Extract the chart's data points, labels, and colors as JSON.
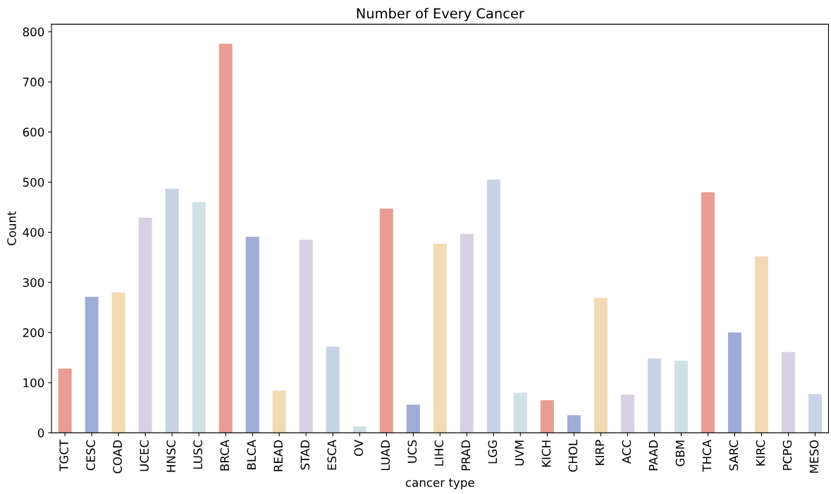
{
  "chart_data": {
    "type": "bar",
    "title": "Number of Every Cancer",
    "xlabel": "cancer type",
    "ylabel": "Count",
    "categories": [
      "TGCT",
      "CESC",
      "COAD",
      "UCEC",
      "HNSC",
      "LUSC",
      "BRCA",
      "BLCA",
      "READ",
      "STAD",
      "ESCA",
      "OV",
      "LUAD",
      "UCS",
      "LIHC",
      "PRAD",
      "LGG",
      "UVM",
      "KICH",
      "CHOL",
      "KIRP",
      "ACC",
      "PAAD",
      "GBM",
      "THCA",
      "SARC",
      "KIRC",
      "PCPG",
      "MESO"
    ],
    "values": [
      128,
      271,
      280,
      429,
      487,
      460,
      776,
      391,
      84,
      385,
      172,
      13,
      447,
      56,
      377,
      397,
      505,
      80,
      65,
      35,
      269,
      76,
      148,
      144,
      480,
      200,
      352,
      161,
      77
    ],
    "colors": [
      "#e99d93",
      "#9facd5",
      "#f2dab4",
      "#d9d0e3",
      "#c8d4e6",
      "#d0e1e6",
      "#e99d93",
      "#9facd5",
      "#f2dab4",
      "#d9d0e3",
      "#c8d4e6",
      "#d0e1e6",
      "#e99d93",
      "#9facd5",
      "#f2dab4",
      "#d9d0e3",
      "#c8d4e6",
      "#d0e1e6",
      "#e99d93",
      "#9facd5",
      "#f2dab4",
      "#d9d0e3",
      "#c8d4e6",
      "#d0e1e6",
      "#e99d93",
      "#9facd5",
      "#f2dab4",
      "#d9d0e3",
      "#c8d4e6"
    ],
    "ylim": [
      0,
      815
    ],
    "yticks": [
      0,
      100,
      200,
      300,
      400,
      500,
      600,
      700,
      800
    ],
    "grid": false,
    "legend": false
  }
}
